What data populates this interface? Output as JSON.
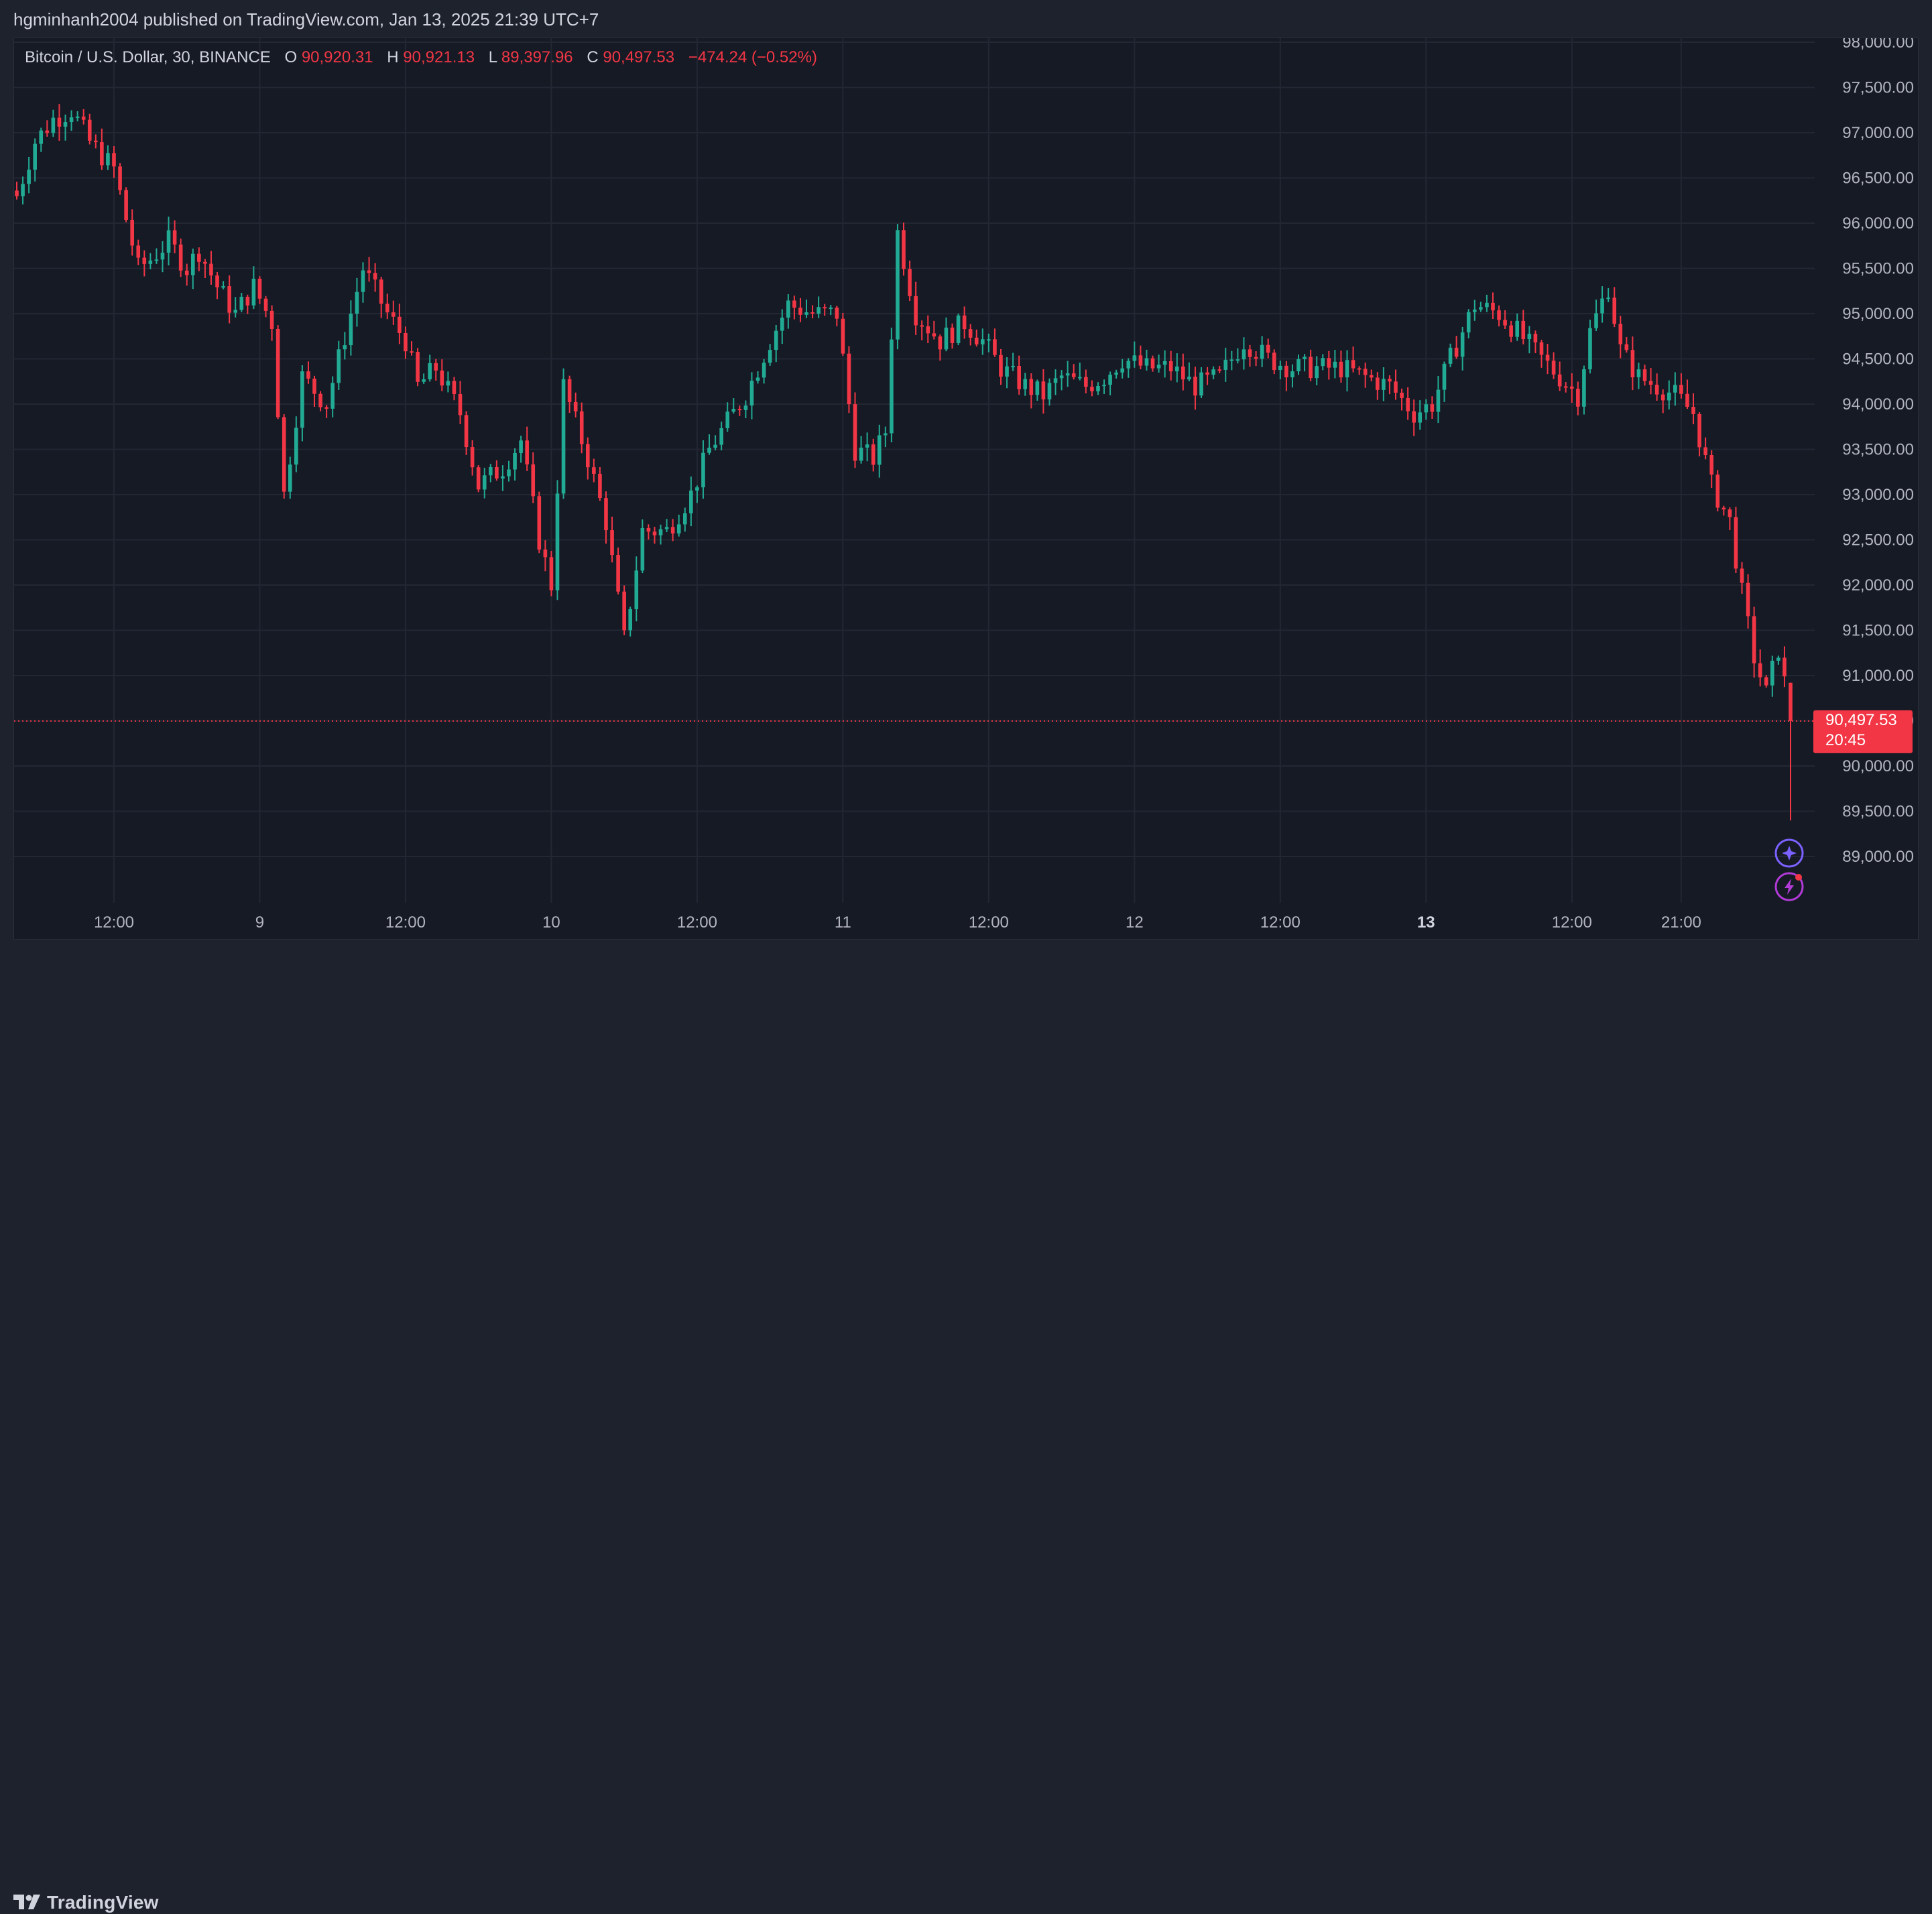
{
  "header": {
    "published_text": "hgminhanh2004 published on TradingView.com, Jan 13, 2025 21:39 UTC+7"
  },
  "legend": {
    "symbol": "Bitcoin / U.S. Dollar, 30, BINANCE",
    "open_label": "O",
    "open": "90,920.31",
    "high_label": "H",
    "high": "90,921.13",
    "low_label": "L",
    "low": "89,397.96",
    "close_label": "C",
    "close": "90,497.53",
    "change": "−474.24 (−0.52%)"
  },
  "price_tag": {
    "price": "90,497.53",
    "countdown": "20:45"
  },
  "footer": {
    "brand": "TradingView"
  },
  "colors": {
    "up": "#22ab94",
    "down": "#f23645",
    "background": "#161a25",
    "grid": "#232733",
    "axis_text": "#b2b5be",
    "last_price": "#f23645",
    "assistant_icon": "#7b61ff"
  },
  "icons": [
    "assistant-sparkle-icon",
    "alert-lightning-icon",
    "tradingview-logo-icon"
  ],
  "chart_data": {
    "type": "candlestick",
    "interval_minutes": 30,
    "ylim": [
      88500,
      98000
    ],
    "y_ticks": [
      89000,
      89500,
      90000,
      90500,
      91000,
      91500,
      92000,
      92500,
      93000,
      93500,
      94000,
      94500,
      95000,
      95500,
      96000,
      96500,
      97000,
      97500,
      98000
    ],
    "y_tick_labels": [
      "89,000.00",
      "89,500.00",
      "90,000.00",
      "90,500.00",
      "91,000.00",
      "91,500.00",
      "92,000.00",
      "92,500.00",
      "93,000.00",
      "93,500.00",
      "94,000.00",
      "94,500.00",
      "95,000.00",
      "95,500.00",
      "96,000.00",
      "96,500.00",
      "97,000.00",
      "97,500.00",
      "98,000.00"
    ],
    "x_ticks": [
      {
        "label": "12:00",
        "bold": false
      },
      {
        "label": "9",
        "bold": false
      },
      {
        "label": "12:00",
        "bold": false
      },
      {
        "label": "10",
        "bold": false
      },
      {
        "label": "12:00",
        "bold": false
      },
      {
        "label": "11",
        "bold": false
      },
      {
        "label": "12:00",
        "bold": false
      },
      {
        "label": "12",
        "bold": false
      },
      {
        "label": "12:00",
        "bold": false
      },
      {
        "label": "13",
        "bold": true
      },
      {
        "label": "12:00",
        "bold": false
      },
      {
        "label": "21:00",
        "bold": false
      }
    ],
    "grid": true,
    "last_price": 90497.53,
    "price_path": [
      [
        0,
        96300
      ],
      [
        3,
        96900
      ],
      [
        6,
        97150
      ],
      [
        9,
        97250
      ],
      [
        12,
        96900
      ],
      [
        16,
        96600
      ],
      [
        20,
        95500
      ],
      [
        22,
        95600
      ],
      [
        25,
        95800
      ],
      [
        28,
        95500
      ],
      [
        30,
        95700
      ],
      [
        33,
        95300
      ],
      [
        36,
        95000
      ],
      [
        39,
        95300
      ],
      [
        42,
        94900
      ],
      [
        44,
        93000
      ],
      [
        47,
        94300
      ],
      [
        51,
        94000
      ],
      [
        55,
        95000
      ],
      [
        57,
        95500
      ],
      [
        61,
        95000
      ],
      [
        64,
        94700
      ],
      [
        66,
        94200
      ],
      [
        69,
        94400
      ],
      [
        73,
        93900
      ],
      [
        76,
        93100
      ],
      [
        80,
        93300
      ],
      [
        83,
        93600
      ],
      [
        86,
        92500
      ],
      [
        88,
        92000
      ],
      [
        90,
        94200
      ],
      [
        94,
        93400
      ],
      [
        97,
        92700
      ],
      [
        100,
        91400
      ],
      [
        103,
        92600
      ],
      [
        107,
        92600
      ],
      [
        111,
        93000
      ],
      [
        114,
        93500
      ],
      [
        117,
        93800
      ],
      [
        120,
        94100
      ],
      [
        124,
        94700
      ],
      [
        127,
        95100
      ],
      [
        131,
        95000
      ],
      [
        135,
        95000
      ],
      [
        138,
        93500
      ],
      [
        141,
        93400
      ],
      [
        143,
        93700
      ],
      [
        145,
        95900
      ],
      [
        148,
        95000
      ],
      [
        152,
        94700
      ],
      [
        156,
        94900
      ],
      [
        159,
        94700
      ],
      [
        162,
        94400
      ],
      [
        166,
        94200
      ],
      [
        169,
        94100
      ],
      [
        172,
        94300
      ],
      [
        176,
        94200
      ],
      [
        179,
        94300
      ],
      [
        182,
        94500
      ],
      [
        186,
        94400
      ],
      [
        190,
        94400
      ],
      [
        194,
        94200
      ],
      [
        198,
        94300
      ],
      [
        202,
        94700
      ],
      [
        206,
        94500
      ],
      [
        210,
        94400
      ],
      [
        214,
        94400
      ],
      [
        218,
        94400
      ],
      [
        222,
        94300
      ],
      [
        226,
        94200
      ],
      [
        230,
        93900
      ],
      [
        233,
        94000
      ],
      [
        236,
        94500
      ],
      [
        240,
        95100
      ],
      [
        244,
        95000
      ],
      [
        247,
        94800
      ],
      [
        251,
        94500
      ],
      [
        254,
        94300
      ],
      [
        257,
        94100
      ],
      [
        259,
        94800
      ],
      [
        262,
        95300
      ],
      [
        264,
        94600
      ],
      [
        267,
        94300
      ],
      [
        270,
        94200
      ],
      [
        273,
        94100
      ],
      [
        276,
        93900
      ],
      [
        279,
        93100
      ],
      [
        282,
        92700
      ],
      [
        284,
        91900
      ],
      [
        286,
        91200
      ],
      [
        288,
        90800
      ],
      [
        290,
        91300
      ],
      [
        291,
        90920.31
      ],
      [
        292,
        90497.53
      ]
    ],
    "final_candle": {
      "open": 90920.31,
      "high": 90921.13,
      "low": 89397.96,
      "close": 90497.53
    }
  }
}
